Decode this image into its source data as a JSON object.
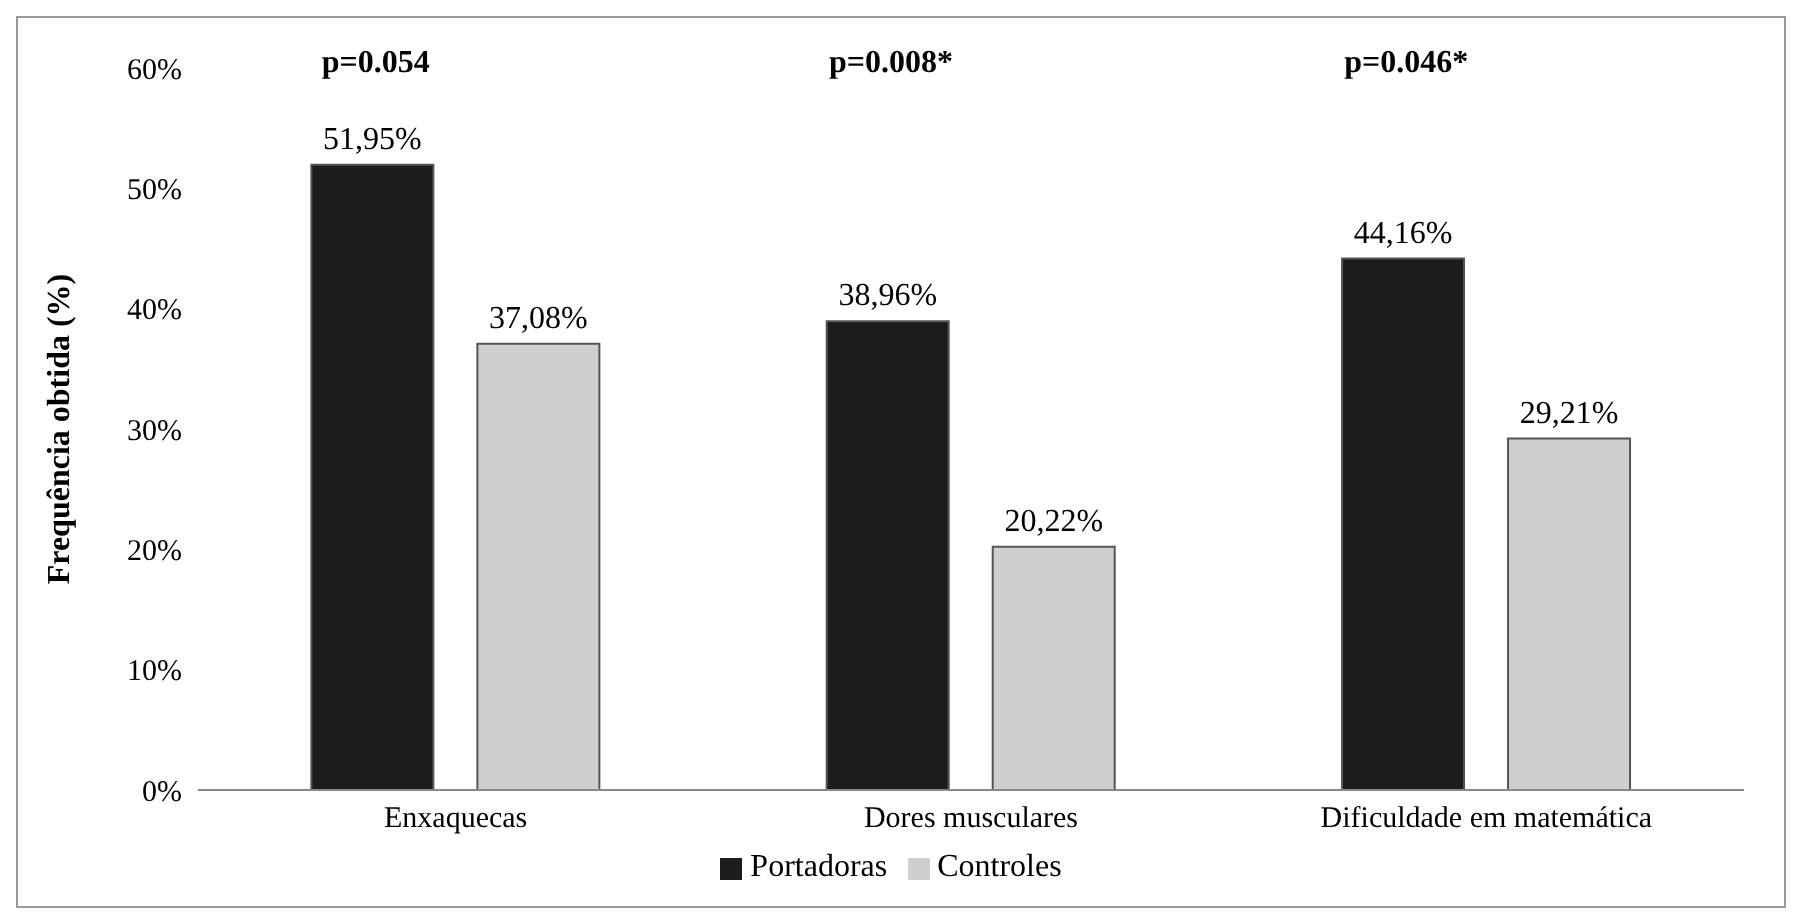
{
  "chart_data": {
    "type": "bar",
    "ylabel": "Frequência obtida  (%)",
    "categories": [
      "Enxaquecas",
      "Dores musculares",
      "Dificuldade em matemática"
    ],
    "series": [
      {
        "name": "Portadoras",
        "color": "#1c1c1c",
        "values": [
          51.95,
          38.96,
          44.16
        ],
        "value_labels": [
          "51,95%",
          "38,96%",
          "44,16%"
        ]
      },
      {
        "name": "Controles",
        "color": "#cfcfcf",
        "values": [
          37.08,
          20.22,
          29.21
        ],
        "value_labels": [
          "37,08%",
          "20,22%",
          "29,21%"
        ]
      }
    ],
    "ylim": [
      0,
      60
    ],
    "yticks": [
      {
        "value": 0,
        "label": "0%"
      },
      {
        "value": 10,
        "label": "10%"
      },
      {
        "value": 20,
        "label": "20%"
      },
      {
        "value": 30,
        "label": "30%"
      },
      {
        "value": 40,
        "label": "40%"
      },
      {
        "value": 50,
        "label": "50%"
      },
      {
        "value": 60,
        "label": "60%"
      }
    ],
    "annotations": [
      "p=0.054",
      "p=0.008*",
      "p=0.046*"
    ],
    "grid": false,
    "legend": "bottom"
  }
}
